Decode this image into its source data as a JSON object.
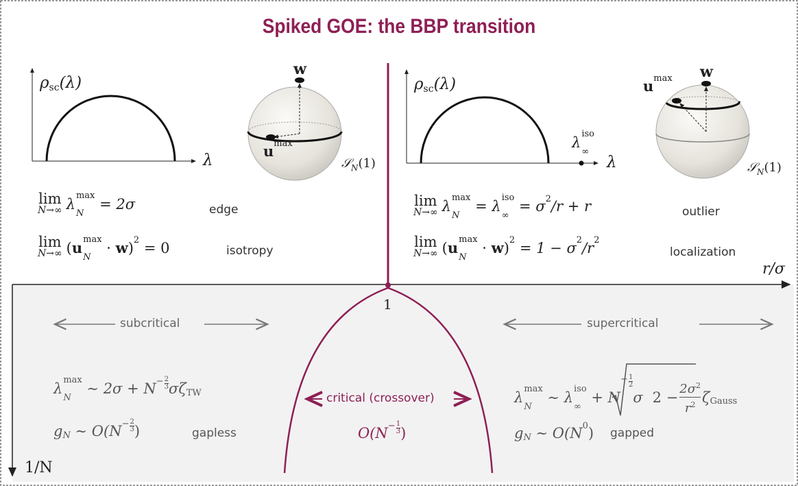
{
  "title": "Spiked GOE: the BBP transition",
  "axes": {
    "x_label": "r/σ",
    "y_label": "1/N",
    "tick": "1"
  },
  "left": {
    "density_label": [
      "ρ",
      "sc",
      "(λ)"
    ],
    "axis_label": "λ",
    "sphere": {
      "spike": "w",
      "eigvec": [
        "u",
        "max"
      ],
      "label": [
        "𝒮",
        "N",
        "(1)"
      ]
    },
    "formulas": [
      {
        "tokens": [
          "lim",
          "N→∞",
          "λ",
          "max",
          "N",
          "= 2σ"
        ],
        "note": "edge"
      },
      {
        "tokens": [
          "lim",
          "N→∞",
          "(",
          "u",
          "max",
          "N",
          "·",
          "w",
          ")",
          "2",
          "= 0"
        ],
        "note": "isotropy"
      }
    ]
  },
  "right": {
    "density_label": [
      "ρ",
      "sc",
      "(λ)"
    ],
    "axis_label": "λ",
    "outlier_label": [
      "λ",
      "iso",
      "∞"
    ],
    "sphere": {
      "spike": "w",
      "eigvec": [
        "u",
        "max"
      ],
      "label": [
        "𝒮",
        "N",
        "(1)"
      ]
    },
    "formulas": [
      {
        "tokens": [
          "lim",
          "N→∞",
          "λ",
          "max",
          "N",
          "=",
          "λ",
          "iso",
          "∞",
          "= σ",
          "2",
          "/r + r"
        ],
        "note": "outlier"
      },
      {
        "tokens": [
          "lim",
          "N→∞",
          "(",
          "u",
          "max",
          "N",
          "·",
          "w",
          ")",
          "2",
          "= 1 − σ",
          "2",
          "/r",
          "2"
        ],
        "note": "localization"
      }
    ]
  },
  "subcritical": {
    "label": "subcritical",
    "formulas": [
      {
        "tokens": [
          "λ",
          "max",
          "N",
          "∼ 2σ + N",
          "−",
          "2",
          "3",
          "σζ",
          "TW"
        ]
      },
      {
        "tokens": [
          "g",
          "N",
          "∼ O(N",
          "−",
          "2",
          "3",
          ")"
        ],
        "note": "gapless"
      }
    ]
  },
  "critical": {
    "label": "critical (crossover)",
    "scale": [
      "O(N",
      "−",
      "1",
      "3",
      ")"
    ]
  },
  "supercritical": {
    "label": "supercritical",
    "formulas": [
      {
        "tokens": [
          "λ",
          "max",
          "N",
          "∼",
          "λ",
          "iso",
          "∞",
          "+ N",
          "−",
          "1",
          "2",
          "σ",
          "2 −",
          "2σ",
          "2",
          "r",
          "2",
          "ζ",
          "Gauss"
        ]
      },
      {
        "tokens": [
          "g",
          "N",
          "∼ O(N",
          "0",
          ")"
        ],
        "note": "gapped"
      }
    ]
  }
}
